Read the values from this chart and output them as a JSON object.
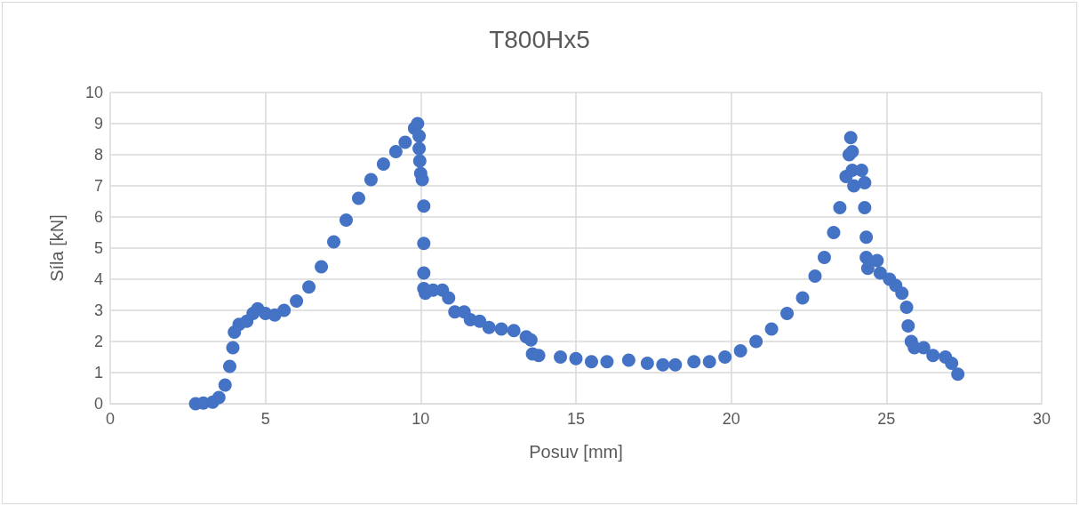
{
  "chart_data": {
    "type": "scatter",
    "title": "T800Hx5",
    "xlabel": "Posuv [mm]",
    "ylabel": "Síla [kN]",
    "marker": "circle",
    "grid": true,
    "xlim": [
      0,
      30
    ],
    "xticks": [
      0,
      5,
      10,
      15,
      20,
      25,
      30
    ],
    "ylim": [
      0,
      10
    ],
    "yticks": [
      0,
      1,
      2,
      3,
      4,
      5,
      6,
      7,
      8,
      9,
      10
    ],
    "series": [
      {
        "color": "#4472c4",
        "x": [
          2.75,
          3.0,
          3.3,
          3.5,
          3.7,
          3.85,
          3.95,
          4.0,
          4.15,
          4.4,
          4.6,
          4.75,
          5.0,
          5.3,
          5.6,
          6.0,
          6.4,
          6.8,
          7.2,
          7.6,
          8.0,
          8.4,
          8.8,
          9.2,
          9.5,
          9.8,
          9.9,
          9.95,
          9.95,
          9.97,
          10.0,
          10.05,
          10.1,
          10.1,
          10.1,
          10.1,
          10.15,
          10.4,
          10.7,
          10.9,
          11.1,
          11.4,
          11.6,
          11.9,
          12.2,
          12.6,
          13.0,
          13.4,
          13.55,
          13.6,
          13.8,
          14.5,
          15.0,
          15.5,
          16.0,
          16.7,
          17.3,
          17.8,
          18.2,
          18.8,
          19.3,
          19.8,
          20.3,
          20.8,
          21.3,
          21.8,
          22.3,
          22.7,
          23.0,
          23.3,
          23.5,
          23.7,
          23.8,
          23.85,
          23.9,
          23.9,
          23.95,
          24.2,
          24.3,
          24.3,
          24.35,
          24.35,
          24.4,
          24.7,
          24.8,
          25.1,
          25.3,
          25.5,
          25.65,
          25.7,
          25.8,
          25.9,
          26.2,
          26.5,
          26.9,
          27.1,
          27.3
        ],
        "values": [
          0,
          0.02,
          0.05,
          0.2,
          0.6,
          1.2,
          1.8,
          2.3,
          2.55,
          2.65,
          2.9,
          3.05,
          2.9,
          2.85,
          3.0,
          3.3,
          3.75,
          4.4,
          5.2,
          5.9,
          6.6,
          7.2,
          7.7,
          8.1,
          8.4,
          8.85,
          9.0,
          8.6,
          8.2,
          7.8,
          7.4,
          7.2,
          6.35,
          5.15,
          4.2,
          3.7,
          3.55,
          3.65,
          3.65,
          3.4,
          2.95,
          2.95,
          2.7,
          2.65,
          2.45,
          2.4,
          2.35,
          2.15,
          2.05,
          1.6,
          1.55,
          1.5,
          1.45,
          1.35,
          1.35,
          1.4,
          1.3,
          1.25,
          1.25,
          1.35,
          1.35,
          1.5,
          1.7,
          2.0,
          2.4,
          2.9,
          3.4,
          4.1,
          4.7,
          5.5,
          6.3,
          7.3,
          8.0,
          8.55,
          8.1,
          7.5,
          7.0,
          7.5,
          7.1,
          6.3,
          5.35,
          4.7,
          4.35,
          4.6,
          4.2,
          4.0,
          3.8,
          3.55,
          3.1,
          2.5,
          2.0,
          1.8,
          1.8,
          1.55,
          1.5,
          1.3,
          0.95
        ]
      }
    ]
  }
}
